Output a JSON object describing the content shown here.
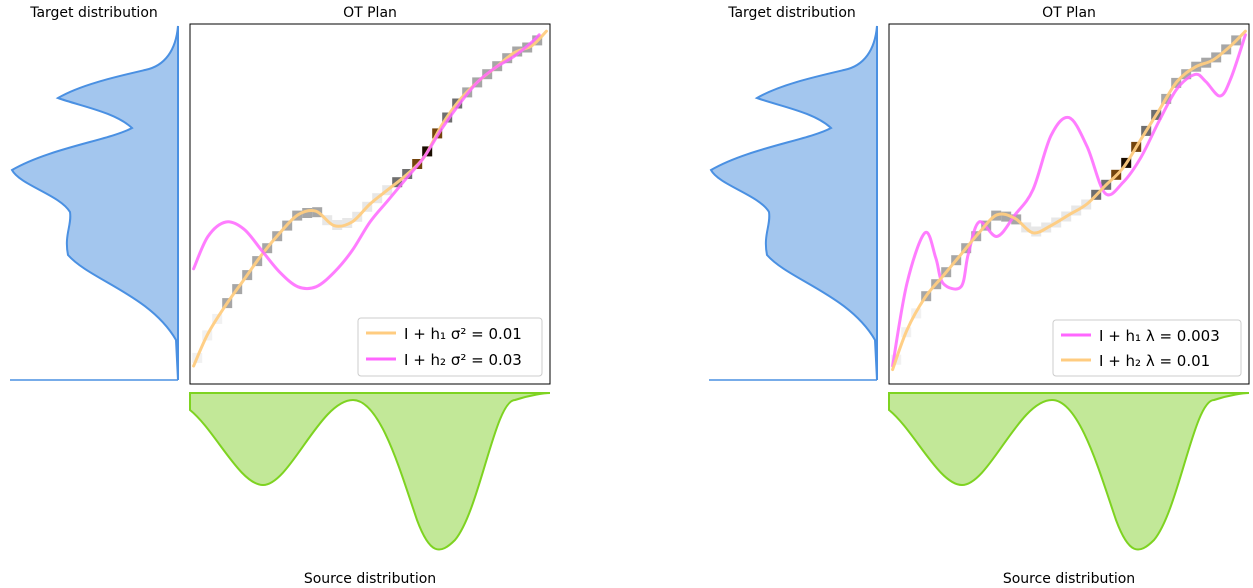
{
  "chart_data": [
    {
      "type": "line",
      "title": "OT Plan",
      "target_title": "Target distribution",
      "source_title": "Source distribution",
      "xlim": [
        0,
        1
      ],
      "ylim": [
        0,
        1
      ],
      "legend_position": "bottom-right",
      "colors": {
        "orange": "#ffcc80",
        "magenta": "#ff66ff",
        "target_fill": "#a3c6ee",
        "target_line": "#4a90e2",
        "source_fill": "#c2e898",
        "source_line": "#7ed321"
      },
      "series": [
        {
          "name": "I + h₁  σ² = 0.01",
          "color": "#ffcc80",
          "x": [
            0.01,
            0.05,
            0.1,
            0.15,
            0.2,
            0.25,
            0.3,
            0.35,
            0.4,
            0.45,
            0.5,
            0.55,
            0.6,
            0.65,
            0.7,
            0.75,
            0.8,
            0.85,
            0.9,
            0.95,
            0.99
          ],
          "y": [
            0.05,
            0.14,
            0.22,
            0.29,
            0.36,
            0.42,
            0.47,
            0.48,
            0.44,
            0.45,
            0.5,
            0.54,
            0.58,
            0.63,
            0.72,
            0.79,
            0.84,
            0.88,
            0.92,
            0.94,
            0.98
          ]
        },
        {
          "name": "I + h₂  σ² = 0.03",
          "color": "#ff66ff",
          "x": [
            0.01,
            0.05,
            0.1,
            0.15,
            0.2,
            0.25,
            0.3,
            0.35,
            0.4,
            0.45,
            0.5,
            0.55,
            0.6,
            0.65,
            0.7,
            0.75,
            0.8,
            0.85,
            0.9,
            0.95,
            0.97
          ],
          "y": [
            0.32,
            0.41,
            0.45,
            0.43,
            0.37,
            0.31,
            0.27,
            0.27,
            0.31,
            0.37,
            0.45,
            0.51,
            0.57,
            0.63,
            0.71,
            0.78,
            0.84,
            0.88,
            0.91,
            0.95,
            0.97
          ]
        }
      ]
    },
    {
      "type": "line",
      "title": "OT Plan",
      "target_title": "Target distribution",
      "source_title": "Source distribution",
      "xlim": [
        0,
        1
      ],
      "ylim": [
        0,
        1
      ],
      "legend_position": "bottom-right",
      "series": [
        {
          "name": "I + h₁  λ = 0.003",
          "color": "#ff66ff",
          "x": [
            0.01,
            0.05,
            0.1,
            0.13,
            0.15,
            0.2,
            0.22,
            0.25,
            0.3,
            0.35,
            0.4,
            0.45,
            0.5,
            0.55,
            0.6,
            0.65,
            0.7,
            0.75,
            0.8,
            0.85,
            0.88,
            0.92,
            0.95,
            0.99
          ],
          "y": [
            0.05,
            0.28,
            0.42,
            0.35,
            0.28,
            0.27,
            0.36,
            0.45,
            0.41,
            0.47,
            0.54,
            0.69,
            0.74,
            0.66,
            0.53,
            0.56,
            0.63,
            0.73,
            0.82,
            0.86,
            0.84,
            0.8,
            0.85,
            0.97
          ]
        },
        {
          "name": "I + h₂  λ = 0.01",
          "color": "#ffcc80",
          "x": [
            0.01,
            0.05,
            0.1,
            0.15,
            0.2,
            0.25,
            0.3,
            0.35,
            0.4,
            0.45,
            0.5,
            0.55,
            0.6,
            0.65,
            0.7,
            0.75,
            0.8,
            0.85,
            0.9,
            0.95,
            0.99
          ],
          "y": [
            0.04,
            0.15,
            0.24,
            0.3,
            0.36,
            0.42,
            0.47,
            0.46,
            0.42,
            0.44,
            0.47,
            0.5,
            0.55,
            0.6,
            0.68,
            0.76,
            0.84,
            0.88,
            0.9,
            0.94,
            0.98
          ]
        }
      ]
    }
  ]
}
